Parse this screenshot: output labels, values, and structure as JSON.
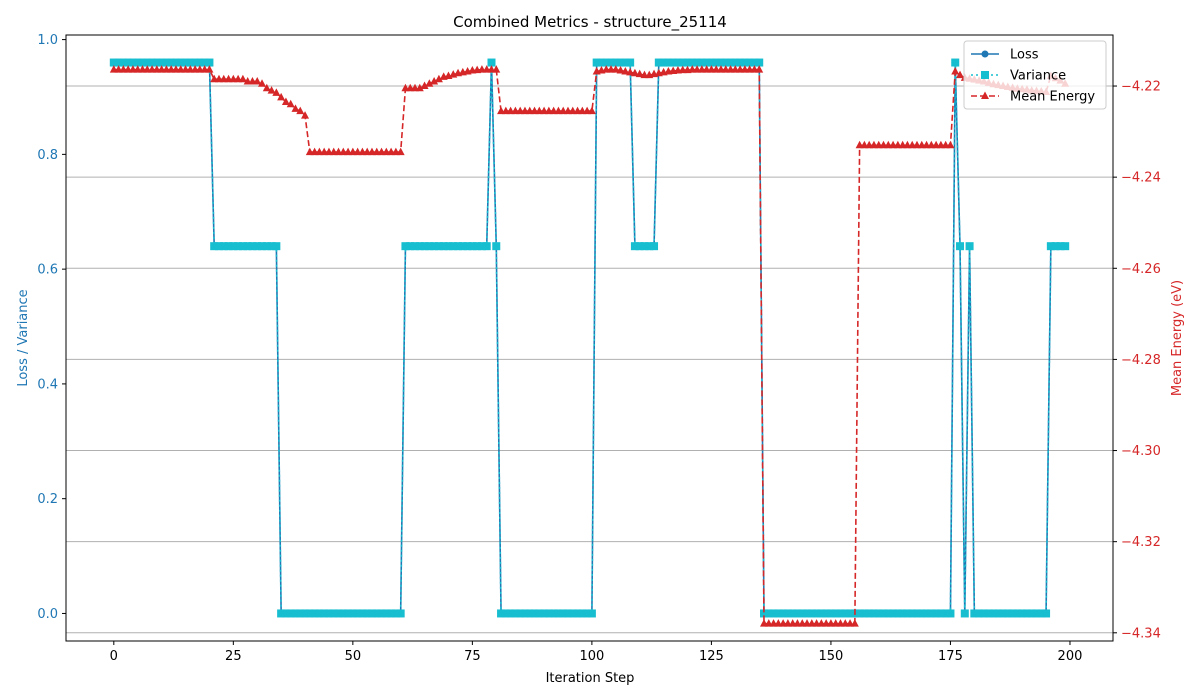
{
  "chart_data": {
    "type": "line",
    "title": "Combined Metrics - structure_25114",
    "xlabel": "Iteration Step",
    "ylabel_left": "Loss / Variance",
    "ylabel_right": "Mean Energy (eV)",
    "xlim": [
      -10,
      209
    ],
    "ylim_left": [
      -0.048,
      1.008
    ],
    "ylim_right": [
      -4.3418,
      -4.2088
    ],
    "xticks": [
      0,
      25,
      50,
      75,
      100,
      125,
      150,
      175,
      200
    ],
    "yticks_left": [
      0.0,
      0.2,
      0.4,
      0.6,
      0.8,
      1.0
    ],
    "yticks_right": [
      -4.34,
      -4.32,
      -4.3,
      -4.28,
      -4.26,
      -4.24,
      -4.22
    ],
    "grid": "horizontal-right-axis",
    "legend_position": "top-right",
    "colors": {
      "loss": "#1f77b4",
      "variance": "#17becf",
      "energy": "#d62728",
      "left_axis": "#1f77b4",
      "right_axis": "#d62728",
      "grid": "#b0b0b0"
    },
    "series": [
      {
        "name": "Loss",
        "axis": "left",
        "style": "solid-circle",
        "segments": [
          {
            "from": 0,
            "to": 20,
            "value": 0.96
          },
          {
            "from": 21,
            "to": 34,
            "value": 0.64
          },
          {
            "from": 35,
            "to": 60,
            "value": 0.0
          },
          {
            "from": 61,
            "to": 78,
            "value": 0.64
          },
          {
            "from": 79,
            "to": 79,
            "value": 0.96
          },
          {
            "from": 80,
            "to": 80,
            "value": 0.64
          },
          {
            "from": 81,
            "to": 100,
            "value": 0.0
          },
          {
            "from": 101,
            "to": 108,
            "value": 0.96
          },
          {
            "from": 109,
            "to": 113,
            "value": 0.64
          },
          {
            "from": 114,
            "to": 135,
            "value": 0.96
          },
          {
            "from": 136,
            "to": 175,
            "value": 0.0
          },
          {
            "from": 176,
            "to": 176,
            "value": 0.96
          },
          {
            "from": 177,
            "to": 177,
            "value": 0.64
          },
          {
            "from": 178,
            "to": 178,
            "value": 0.0
          },
          {
            "from": 179,
            "to": 179,
            "value": 0.64
          },
          {
            "from": 180,
            "to": 195,
            "value": 0.0
          },
          {
            "from": 196,
            "to": 199,
            "value": 0.64
          }
        ]
      },
      {
        "name": "Variance",
        "axis": "left",
        "style": "dotted-square",
        "same_as": "Loss"
      },
      {
        "name": "Mean Energy",
        "axis": "right",
        "style": "dashed-triangle",
        "points": [
          [
            0,
            -4.2164
          ],
          [
            1,
            -4.2164
          ],
          [
            2,
            -4.2164
          ],
          [
            3,
            -4.2164
          ],
          [
            4,
            -4.2164
          ],
          [
            5,
            -4.2164
          ],
          [
            6,
            -4.2164
          ],
          [
            7,
            -4.2164
          ],
          [
            8,
            -4.2164
          ],
          [
            9,
            -4.2164
          ],
          [
            10,
            -4.2164
          ],
          [
            11,
            -4.2164
          ],
          [
            12,
            -4.2164
          ],
          [
            13,
            -4.2164
          ],
          [
            14,
            -4.2164
          ],
          [
            15,
            -4.2164
          ],
          [
            16,
            -4.2164
          ],
          [
            17,
            -4.2164
          ],
          [
            18,
            -4.2164
          ],
          [
            19,
            -4.2164
          ],
          [
            20,
            -4.2164
          ],
          [
            21,
            -4.2185
          ],
          [
            22,
            -4.2185
          ],
          [
            23,
            -4.2185
          ],
          [
            24,
            -4.2185
          ],
          [
            25,
            -4.2185
          ],
          [
            26,
            -4.2185
          ],
          [
            27,
            -4.2185
          ],
          [
            28,
            -4.219
          ],
          [
            29,
            -4.219
          ],
          [
            30,
            -4.219
          ],
          [
            31,
            -4.2195
          ],
          [
            32,
            -4.2205
          ],
          [
            33,
            -4.221
          ],
          [
            34,
            -4.2215
          ],
          [
            35,
            -4.2225
          ],
          [
            36,
            -4.2235
          ],
          [
            37,
            -4.224
          ],
          [
            38,
            -4.225
          ],
          [
            39,
            -4.2255
          ],
          [
            40,
            -4.2265
          ],
          [
            41,
            -4.2345
          ],
          [
            42,
            -4.2345
          ],
          [
            43,
            -4.2345
          ],
          [
            44,
            -4.2345
          ],
          [
            45,
            -4.2345
          ],
          [
            46,
            -4.2345
          ],
          [
            47,
            -4.2345
          ],
          [
            48,
            -4.2345
          ],
          [
            49,
            -4.2345
          ],
          [
            50,
            -4.2345
          ],
          [
            51,
            -4.2345
          ],
          [
            52,
            -4.2345
          ],
          [
            53,
            -4.2345
          ],
          [
            54,
            -4.2345
          ],
          [
            55,
            -4.2345
          ],
          [
            56,
            -4.2345
          ],
          [
            57,
            -4.2345
          ],
          [
            58,
            -4.2345
          ],
          [
            59,
            -4.2345
          ],
          [
            60,
            -4.2345
          ],
          [
            61,
            -4.2205
          ],
          [
            62,
            -4.2205
          ],
          [
            63,
            -4.2205
          ],
          [
            64,
            -4.2205
          ],
          [
            65,
            -4.22
          ],
          [
            66,
            -4.2195
          ],
          [
            67,
            -4.219
          ],
          [
            68,
            -4.2185
          ],
          [
            69,
            -4.218
          ],
          [
            70,
            -4.2178
          ],
          [
            71,
            -4.2175
          ],
          [
            72,
            -4.2172
          ],
          [
            73,
            -4.217
          ],
          [
            74,
            -4.2168
          ],
          [
            75,
            -4.2166
          ],
          [
            76,
            -4.2165
          ],
          [
            77,
            -4.2164
          ],
          [
            78,
            -4.2164
          ],
          [
            79,
            -4.2164
          ],
          [
            80,
            -4.2164
          ],
          [
            81,
            -4.2255
          ],
          [
            82,
            -4.2255
          ],
          [
            83,
            -4.2255
          ],
          [
            84,
            -4.2255
          ],
          [
            85,
            -4.2255
          ],
          [
            86,
            -4.2255
          ],
          [
            87,
            -4.2255
          ],
          [
            88,
            -4.2255
          ],
          [
            89,
            -4.2255
          ],
          [
            90,
            -4.2255
          ],
          [
            91,
            -4.2255
          ],
          [
            92,
            -4.2255
          ],
          [
            93,
            -4.2255
          ],
          [
            94,
            -4.2255
          ],
          [
            95,
            -4.2255
          ],
          [
            96,
            -4.2255
          ],
          [
            97,
            -4.2255
          ],
          [
            98,
            -4.2255
          ],
          [
            99,
            -4.2255
          ],
          [
            100,
            -4.2255
          ],
          [
            101,
            -4.2168
          ],
          [
            102,
            -4.2166
          ],
          [
            103,
            -4.2164
          ],
          [
            104,
            -4.2164
          ],
          [
            105,
            -4.2164
          ],
          [
            106,
            -4.2166
          ],
          [
            107,
            -4.2168
          ],
          [
            108,
            -4.217
          ],
          [
            109,
            -4.2172
          ],
          [
            110,
            -4.2174
          ],
          [
            111,
            -4.2176
          ],
          [
            112,
            -4.2176
          ],
          [
            113,
            -4.2174
          ],
          [
            114,
            -4.2172
          ],
          [
            115,
            -4.217
          ],
          [
            116,
            -4.2168
          ],
          [
            117,
            -4.2167
          ],
          [
            118,
            -4.2166
          ],
          [
            119,
            -4.2165
          ],
          [
            120,
            -4.2165
          ],
          [
            121,
            -4.2164
          ],
          [
            122,
            -4.2164
          ],
          [
            123,
            -4.2164
          ],
          [
            124,
            -4.2164
          ],
          [
            125,
            -4.2164
          ],
          [
            126,
            -4.2164
          ],
          [
            127,
            -4.2164
          ],
          [
            128,
            -4.2164
          ],
          [
            129,
            -4.2164
          ],
          [
            130,
            -4.2164
          ],
          [
            131,
            -4.2164
          ],
          [
            132,
            -4.2164
          ],
          [
            133,
            -4.2164
          ],
          [
            134,
            -4.2164
          ],
          [
            135,
            -4.2164
          ],
          [
            136,
            -4.338
          ],
          [
            137,
            -4.338
          ],
          [
            138,
            -4.338
          ],
          [
            139,
            -4.338
          ],
          [
            140,
            -4.338
          ],
          [
            141,
            -4.338
          ],
          [
            142,
            -4.338
          ],
          [
            143,
            -4.338
          ],
          [
            144,
            -4.338
          ],
          [
            145,
            -4.338
          ],
          [
            146,
            -4.338
          ],
          [
            147,
            -4.338
          ],
          [
            148,
            -4.338
          ],
          [
            149,
            -4.338
          ],
          [
            150,
            -4.338
          ],
          [
            151,
            -4.338
          ],
          [
            152,
            -4.338
          ],
          [
            153,
            -4.338
          ],
          [
            154,
            -4.338
          ],
          [
            155,
            -4.338
          ],
          [
            156,
            -4.233
          ],
          [
            157,
            -4.233
          ],
          [
            158,
            -4.233
          ],
          [
            159,
            -4.233
          ],
          [
            160,
            -4.233
          ],
          [
            161,
            -4.233
          ],
          [
            162,
            -4.233
          ],
          [
            163,
            -4.233
          ],
          [
            164,
            -4.233
          ],
          [
            165,
            -4.233
          ],
          [
            166,
            -4.233
          ],
          [
            167,
            -4.233
          ],
          [
            168,
            -4.233
          ],
          [
            169,
            -4.233
          ],
          [
            170,
            -4.233
          ],
          [
            171,
            -4.233
          ],
          [
            172,
            -4.233
          ],
          [
            173,
            -4.233
          ],
          [
            174,
            -4.233
          ],
          [
            175,
            -4.233
          ],
          [
            176,
            -4.2168
          ],
          [
            177,
            -4.2176
          ],
          [
            178,
            -4.2182
          ],
          [
            179,
            -4.2184
          ],
          [
            180,
            -4.2186
          ],
          [
            181,
            -4.2188
          ],
          [
            182,
            -4.219
          ],
          [
            183,
            -4.2193
          ],
          [
            184,
            -4.2196
          ],
          [
            185,
            -4.2198
          ],
          [
            186,
            -4.22
          ],
          [
            187,
            -4.2202
          ],
          [
            188,
            -4.2204
          ],
          [
            189,
            -4.2206
          ],
          [
            190,
            -4.2207
          ],
          [
            191,
            -4.2208
          ],
          [
            192,
            -4.221
          ],
          [
            193,
            -4.2211
          ],
          [
            194,
            -4.2212
          ],
          [
            195,
            -4.2213
          ],
          [
            196,
            -4.2178
          ],
          [
            197,
            -4.2183
          ],
          [
            198,
            -4.2188
          ],
          [
            199,
            -4.2195
          ]
        ]
      }
    ]
  }
}
